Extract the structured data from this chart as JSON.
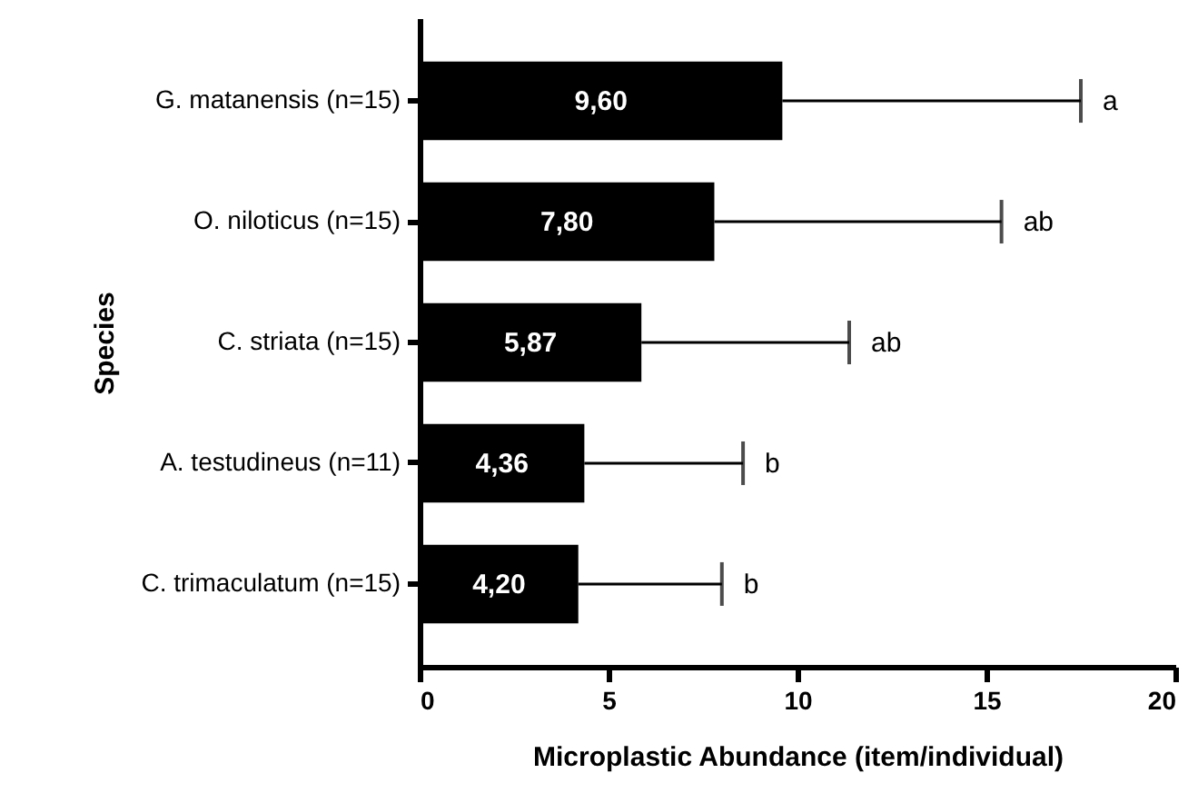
{
  "chart_data": {
    "type": "bar",
    "orientation": "horizontal",
    "xlabel": "Microplastic Abundance (item/individual)",
    "ylabel": "Species",
    "categories": [
      "G. matanensis (n=15)",
      "O. niloticus (n=15)",
      "C. striata (n=15)",
      "A. testudineus (n=11)",
      "C. trimaculatum (n=15)"
    ],
    "values": [
      9.6,
      7.8,
      5.87,
      4.36,
      4.2
    ],
    "value_labels": [
      "9,60",
      "7,80",
      "5,87",
      "4,36",
      "4,20"
    ],
    "errors": [
      7.9,
      7.6,
      5.5,
      4.2,
      3.8
    ],
    "color": "#000000",
    "xlim": [
      0,
      20
    ],
    "xticks": [
      0,
      5,
      10,
      15,
      20
    ],
    "grid": false,
    "annotations": [
      "a",
      "ab",
      "ab",
      "b",
      "b"
    ]
  }
}
